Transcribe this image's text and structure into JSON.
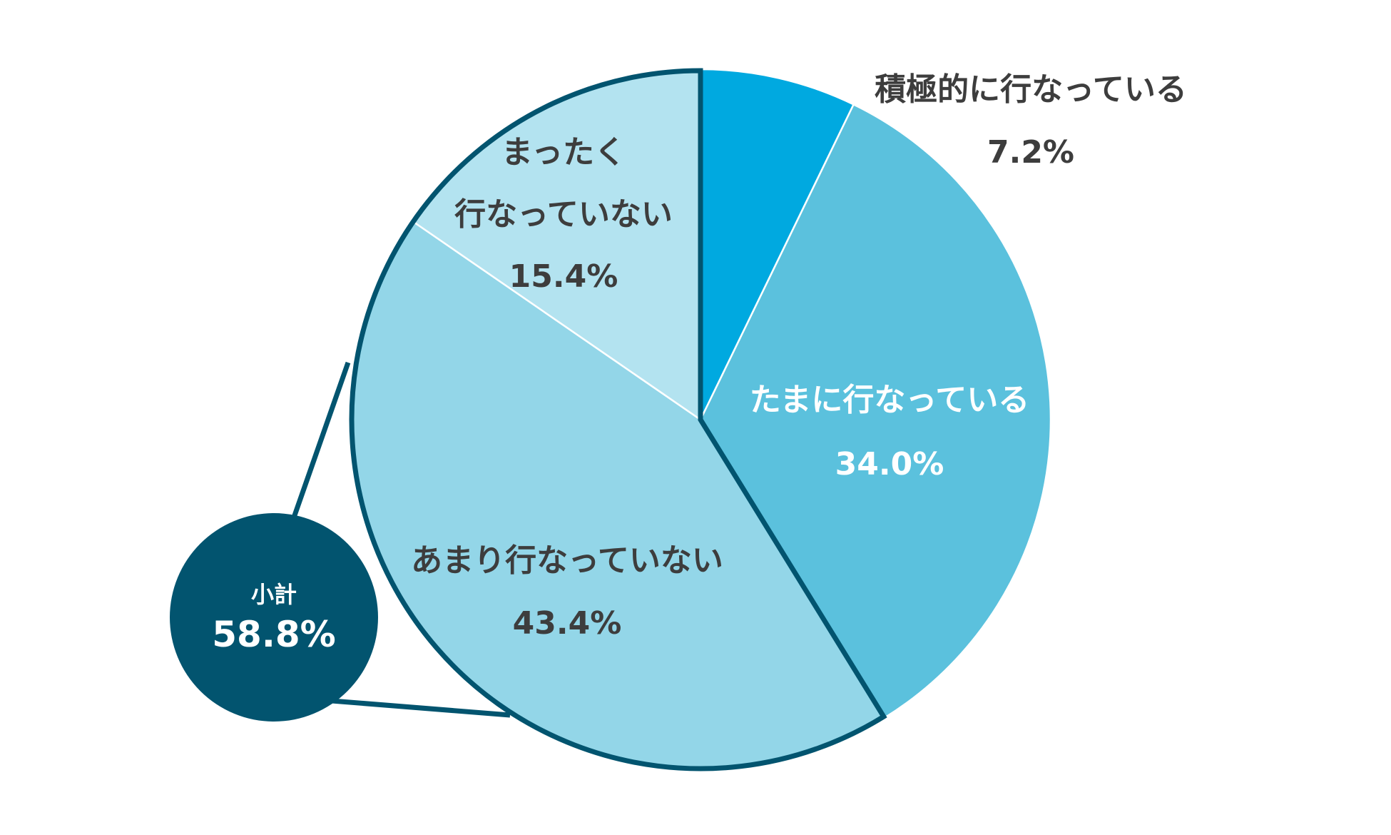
{
  "chart_data": {
    "type": "pie",
    "title": "",
    "slices": [
      {
        "label_lines": [
          "積極的に行なっている"
        ],
        "value": 7.2,
        "value_label": "7.2%",
        "color": "#00a9e0",
        "text_color": "#3d3d3d"
      },
      {
        "label_lines": [
          "たまに行なっている"
        ],
        "value": 34.0,
        "value_label": "34.0%",
        "color": "#5bc1dd",
        "text_color": "#ffffff"
      },
      {
        "label_lines": [
          "あまり行なっていない"
        ],
        "value": 43.4,
        "value_label": "43.4%",
        "color": "#93d6e8",
        "text_color": "#3d3d3d"
      },
      {
        "label_lines": [
          "まったく",
          "行なっていない"
        ],
        "value": 15.4,
        "value_label": "15.4%",
        "color": "#b3e3f0",
        "text_color": "#3d3d3d"
      }
    ],
    "subtotal": {
      "label": "小計",
      "value": 58.8,
      "value_label": "58.8%",
      "color": "#02546f",
      "text_color": "#ffffff",
      "covers": [
        "あまり行なっていない",
        "まったく 行なっていない"
      ]
    }
  }
}
